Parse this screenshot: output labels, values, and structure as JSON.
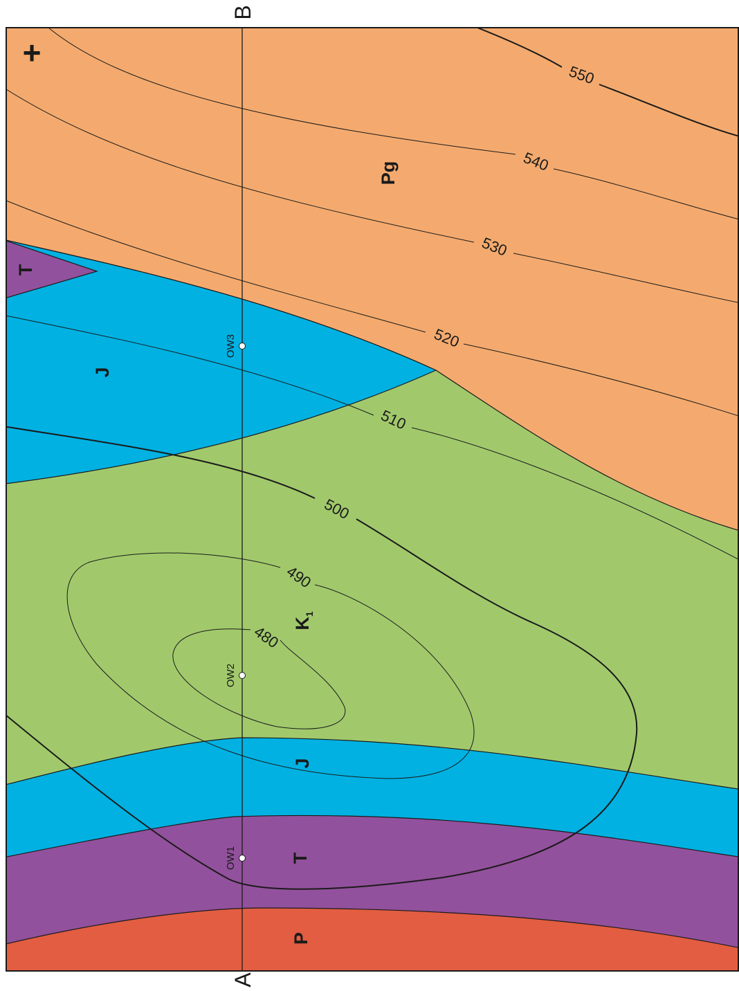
{
  "map": {
    "colors": {
      "Pg": "#f4aa6e",
      "K1": "#a1c96c",
      "J": "#00b1e2",
      "T": "#92519c",
      "P": "#e25d41",
      "line": "#1a1a1a"
    },
    "units": [
      {
        "id": "Pg",
        "label": "Pg"
      },
      {
        "id": "K1",
        "label": "K",
        "subscript": "1"
      },
      {
        "id": "J-north",
        "label": "J"
      },
      {
        "id": "J-south",
        "label": "J"
      },
      {
        "id": "T-north",
        "label": "T"
      },
      {
        "id": "T-south",
        "label": "T"
      },
      {
        "id": "P",
        "label": "P"
      }
    ],
    "contours": [
      "480",
      "490",
      "500",
      "510",
      "520",
      "530",
      "540",
      "550"
    ],
    "section": {
      "start": "A",
      "end": "B"
    },
    "wells": [
      "OW1",
      "OW2",
      "OW3"
    ],
    "north_marker": "+"
  }
}
